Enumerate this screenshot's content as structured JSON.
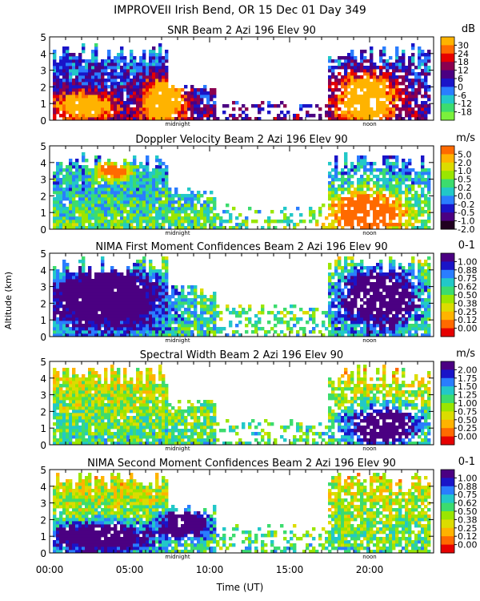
{
  "chart_data": {
    "type": "heatmap",
    "title": "IMPROVEII  Irish Bend, OR  15 Dec 01 Day 349",
    "xlabel": "Time (UT)",
    "ylabel": "Altitude (km)",
    "x_ticks": [
      "00:00",
      "05:00",
      "10:00",
      "15:00",
      "20:00"
    ],
    "x_tick_values": [
      0,
      5,
      10,
      15,
      20
    ],
    "x_minor_step": 1,
    "xlim": [
      0,
      24
    ],
    "markers": [
      {
        "label": "midnight",
        "x": 8.0
      },
      {
        "label": "noon",
        "x": 20.0
      }
    ],
    "y_ticks": [
      "0",
      "1",
      "2",
      "3",
      "4",
      "5"
    ],
    "y_tick_values": [
      0,
      1,
      2,
      3,
      4,
      5
    ],
    "ylim": [
      0,
      5
    ],
    "panels": [
      {
        "title": "SNR Beam 2 Azi 196 Elev 90",
        "unit": "dB",
        "colorbar_labels": [
          "30",
          "24",
          "18",
          "12",
          "6",
          "0",
          "-6",
          "-12",
          "-18"
        ],
        "colors": [
          "#ffb300",
          "#ff6a00",
          "#e60000",
          "#8a0050",
          "#4b0082",
          "#1a14c8",
          "#2a7dff",
          "#22c8c8",
          "#3cdc6e",
          "#7bf03c"
        ],
        "clouds": [
          {
            "t0": 0.3,
            "t1": 7.5,
            "top": 4.6,
            "dens": 0.97
          },
          {
            "t0": 7.5,
            "t1": 10.5,
            "top": 2.2,
            "dens": 0.85
          },
          {
            "t0": 10.5,
            "t1": 17.5,
            "top": 1.2,
            "dens": 0.35
          },
          {
            "t0": 17.5,
            "t1": 23.8,
            "top": 4.6,
            "dens": 0.8
          }
        ],
        "hot": [
          {
            "t": 2.1,
            "z": 0.9,
            "r": 1.6,
            "h": 0.7
          },
          {
            "t": 7.1,
            "z": 1.2,
            "r": 1.2,
            "h": 1.3
          },
          {
            "t": 19.8,
            "z": 1.3,
            "r": 1.7,
            "h": 1.5
          }
        ]
      },
      {
        "title": "Doppler Velocity Beam 2 Azi 196 Elev 90",
        "unit": "m/s",
        "colorbar_labels": [
          "5.0",
          "2.0",
          "1.0",
          "0.5",
          "0.2",
          "0.0",
          "-0.2",
          "-0.5",
          "-1.0",
          "-2.0"
        ],
        "colors": [
          "#ff6a00",
          "#ffb300",
          "#dcdc00",
          "#9ae600",
          "#3cdc6e",
          "#22c8c8",
          "#2a7dff",
          "#1a14c8",
          "#4b0082",
          "#200020"
        ],
        "clouds": [
          {
            "t0": 0.3,
            "t1": 7.5,
            "top": 4.6,
            "dens": 0.95
          },
          {
            "t0": 7.5,
            "t1": 10.5,
            "top": 2.5,
            "dens": 0.85
          },
          {
            "t0": 10.5,
            "t1": 17.5,
            "top": 1.5,
            "dens": 0.35
          },
          {
            "t0": 17.5,
            "t1": 23.8,
            "top": 4.6,
            "dens": 0.8
          }
        ],
        "hot": [
          {
            "t": 19.8,
            "z": 1.0,
            "r": 2.2,
            "h": 1.2
          },
          {
            "t": 4.0,
            "z": 3.5,
            "r": 1.0,
            "h": 0.5
          }
        ]
      },
      {
        "title": "NIMA First Moment Confidences Beam 2 Azi 196 Elev 90",
        "unit": "0-1",
        "colorbar_labels": [
          "1.00",
          "0.88",
          "0.75",
          "0.62",
          "0.50",
          "0.38",
          "0.25",
          "0.12",
          "0.00"
        ],
        "colors": [
          "#4b0082",
          "#1a14c8",
          "#2a7dff",
          "#22c8c8",
          "#3cdc6e",
          "#9ae600",
          "#dcdc00",
          "#ffb300",
          "#ff6a00",
          "#e60000"
        ],
        "clouds": [
          {
            "t0": 0.3,
            "t1": 7.5,
            "top": 4.9,
            "dens": 0.98
          },
          {
            "t0": 7.5,
            "t1": 10.5,
            "top": 3.2,
            "dens": 0.9
          },
          {
            "t0": 10.5,
            "t1": 17.5,
            "top": 2.0,
            "dens": 0.4
          },
          {
            "t0": 17.5,
            "t1": 23.8,
            "top": 4.9,
            "dens": 0.85
          }
        ],
        "hot": [
          {
            "t": 3.5,
            "z": 2.5,
            "r": 4.0,
            "h": 2.0
          },
          {
            "t": 20.5,
            "z": 2.5,
            "r": 2.6,
            "h": 1.8
          }
        ]
      },
      {
        "title": "Spectral Width Beam 2 Azi 196 Elev 90",
        "unit": "m/s",
        "colorbar_labels": [
          "2.00",
          "1.75",
          "1.50",
          "1.25",
          "1.00",
          "0.75",
          "0.50",
          "0.25",
          "0.00"
        ],
        "colors": [
          "#4b0082",
          "#1a14c8",
          "#2a7dff",
          "#22c8c8",
          "#3cdc6e",
          "#9ae600",
          "#dcdc00",
          "#ffb300",
          "#ff6a00",
          "#e60000"
        ],
        "clouds": [
          {
            "t0": 0.3,
            "t1": 7.5,
            "top": 4.8,
            "dens": 0.95
          },
          {
            "t0": 7.5,
            "t1": 10.5,
            "top": 2.8,
            "dens": 0.9
          },
          {
            "t0": 10.5,
            "t1": 17.5,
            "top": 1.6,
            "dens": 0.35
          },
          {
            "t0": 17.5,
            "t1": 23.8,
            "top": 4.8,
            "dens": 0.8
          }
        ],
        "hot": [
          {
            "t": 20.8,
            "z": 1.2,
            "r": 2.0,
            "h": 1.0
          }
        ]
      },
      {
        "title": "NIMA Second Moment Confidences Beam 2 Azi 196 Elev 90",
        "unit": "0-1",
        "colorbar_labels": [
          "1.00",
          "0.88",
          "0.75",
          "0.62",
          "0.50",
          "0.38",
          "0.25",
          "0.12",
          "0.00"
        ],
        "colors": [
          "#4b0082",
          "#1a14c8",
          "#2a7dff",
          "#22c8c8",
          "#3cdc6e",
          "#9ae600",
          "#dcdc00",
          "#ffb300",
          "#ff6a00",
          "#e60000"
        ],
        "clouds": [
          {
            "t0": 0.3,
            "t1": 7.5,
            "top": 4.9,
            "dens": 0.95
          },
          {
            "t0": 7.5,
            "t1": 10.5,
            "top": 3.0,
            "dens": 0.85
          },
          {
            "t0": 10.5,
            "t1": 17.5,
            "top": 1.8,
            "dens": 0.35
          },
          {
            "t0": 17.5,
            "t1": 23.8,
            "top": 4.9,
            "dens": 0.8
          }
        ],
        "hot": [
          {
            "t": 3.0,
            "z": 1.0,
            "r": 3.0,
            "h": 0.8
          },
          {
            "t": 8.5,
            "z": 1.8,
            "r": 1.5,
            "h": 0.8
          }
        ]
      }
    ]
  }
}
